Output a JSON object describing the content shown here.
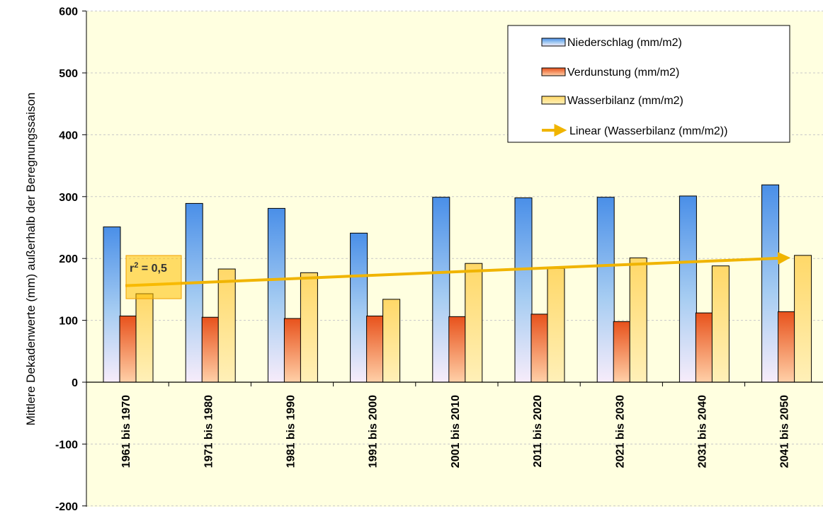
{
  "chart_data": {
    "type": "bar",
    "ylabel": "Mittlere Dekadenwerte (mm)  außerhalb der Beregnungssaison",
    "ylim": [
      -200,
      600
    ],
    "yticks": [
      600,
      500,
      400,
      300,
      200,
      100,
      0,
      -100,
      -200
    ],
    "grid": true,
    "background": "#ffffe0",
    "categories": [
      "1961 bis 1970",
      "1971 bis 1980",
      "1981 bis 1990",
      "1991 bis 2000",
      "2001 bis 2010",
      "2011 bis 2020",
      "2021 bis 2030",
      "2031 bis 2040",
      "2041 bis 2050"
    ],
    "series": [
      {
        "name": "Niederschlag (mm/m2)",
        "color": "#5b9bd5",
        "values": [
          251,
          289,
          281,
          241,
          299,
          298,
          299,
          301,
          319
        ]
      },
      {
        "name": "Verdunstung (mm/m2)",
        "color": "#e8521c",
        "values": [
          107,
          105,
          103,
          107,
          106,
          110,
          98,
          112,
          114
        ]
      },
      {
        "name": "Wasserbilanz (mm/m2)",
        "color": "#ffd966",
        "values": [
          143,
          183,
          177,
          134,
          192,
          184,
          201,
          188,
          205
        ]
      }
    ],
    "trendline": {
      "name": "Linear (Wasserbilanz (mm/m2))",
      "color": "#f0b400",
      "start": 156,
      "end": 201
    },
    "annotation": {
      "r2_label": "r",
      "r2_sup": "2",
      "r2_value": " = 0,5"
    },
    "legend_position": "top-right"
  }
}
